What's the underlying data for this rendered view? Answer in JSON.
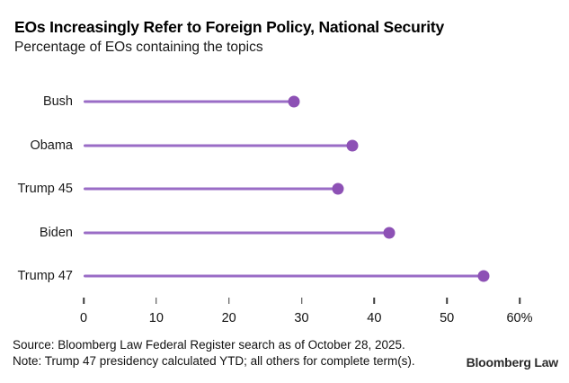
{
  "header": {
    "title": "EOs Increasingly Refer to Foreign Policy, National Security",
    "subtitle": "Percentage of EOs containing the topics"
  },
  "chart_data": {
    "type": "lollipop",
    "orientation": "horizontal",
    "title": "EOs Increasingly Refer to Foreign Policy, National Security",
    "subtitle": "Percentage of EOs containing the topics",
    "categories": [
      "Bush",
      "Obama",
      "Trump 45",
      "Biden",
      "Trump 47"
    ],
    "values": [
      29,
      37,
      35,
      42,
      55
    ],
    "xlabel": "",
    "ylabel": "",
    "xlim": [
      0,
      60
    ],
    "xticks": [
      0,
      10,
      20,
      30,
      40,
      50,
      60
    ],
    "xtick_labels": [
      "0",
      "10",
      "20",
      "30",
      "40",
      "50",
      "60%"
    ],
    "grid": false,
    "legend": "none",
    "colors": {
      "line": "#9a6cc6",
      "dot": "#8d51b5",
      "tick": "#3c3c3c",
      "text": "#1a1a1a"
    }
  },
  "footer": {
    "source": "Source: Bloomberg Law Federal Register search as of October 28, 2025.",
    "note": "Note: Trump 47 presidency calculated YTD; all others for complete term(s).",
    "brand": "Bloomberg Law"
  }
}
